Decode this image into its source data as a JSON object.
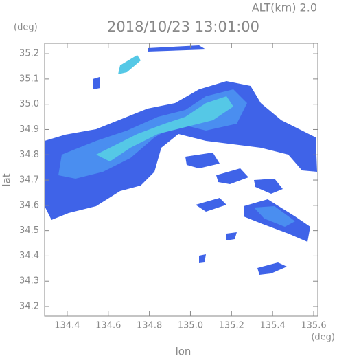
{
  "chart_data": {
    "type": "radar-map",
    "title": "2018/10/23 13:01:00",
    "subtitle": "ALT(km)  2.0",
    "x_label": "lon",
    "y_label": "lat",
    "x_unit": "(deg)",
    "y_unit": "(deg)",
    "xlim": [
      134.29,
      135.62
    ],
    "ylim": [
      34.162,
      35.241
    ],
    "xticks": [
      134.4,
      134.6,
      134.8,
      {
        "value": 135,
        "label": "135.0"
      },
      135.2,
      135.4,
      135.6
    ],
    "yticks": [
      34.2,
      34.3,
      34.4,
      34.5,
      34.6,
      34.7,
      34.8,
      34.9,
      {
        "value": 35,
        "label": "35.0"
      },
      35.1,
      35.2
    ],
    "axis_color": "#888888"
  }
}
